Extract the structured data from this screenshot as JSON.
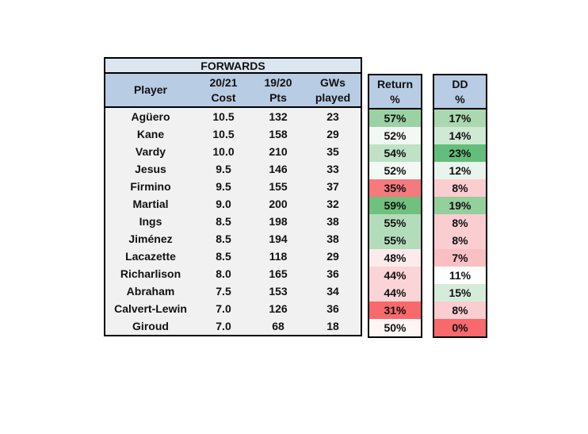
{
  "colors": {
    "title_bg": "#dce6f1",
    "header_bg": "#b8cce4",
    "table_bg": "#f1f1f1",
    "border": "#000000",
    "scale_green_max": "#63be7b",
    "scale_red_min": "#f8696b"
  },
  "table": {
    "title": "FORWARDS",
    "headers": {
      "player": "Player",
      "cost_line1": "20/21",
      "cost_line2": "Cost",
      "pts_line1": "19/20",
      "pts_line2": "Pts",
      "gws_line1": "GWs",
      "gws_line2": "played"
    },
    "rows": [
      {
        "name": "Agüero",
        "cost": "10.5",
        "pts": "132",
        "gws": "23",
        "return_pct": "57%",
        "return_color": "#9bd2a4",
        "dd_pct": "17%",
        "dd_color": "#a9d8b1"
      },
      {
        "name": "Kane",
        "cost": "10.5",
        "pts": "158",
        "gws": "29",
        "return_pct": "52%",
        "return_color": "#f2f8f3",
        "dd_pct": "14%",
        "dd_color": "#cfe9d5"
      },
      {
        "name": "Vardy",
        "cost": "10.0",
        "pts": "210",
        "gws": "35",
        "return_pct": "54%",
        "return_color": "#bfe1c6",
        "dd_pct": "23%",
        "dd_color": "#63be7b"
      },
      {
        "name": "Jesus",
        "cost": "9.5",
        "pts": "146",
        "gws": "33",
        "return_pct": "52%",
        "return_color": "#f2f8f3",
        "dd_pct": "12%",
        "dd_color": "#e9f4ec"
      },
      {
        "name": "Firmino",
        "cost": "9.5",
        "pts": "155",
        "gws": "37",
        "return_pct": "35%",
        "return_color": "#f5797d",
        "dd_pct": "8%",
        "dd_color": "#facdd1"
      },
      {
        "name": "Martial",
        "cost": "9.0",
        "pts": "200",
        "gws": "32",
        "return_pct": "59%",
        "return_color": "#70c07e",
        "dd_pct": "19%",
        "dd_color": "#94cf9e"
      },
      {
        "name": "Ings",
        "cost": "8.5",
        "pts": "198",
        "gws": "38",
        "return_pct": "55%",
        "return_color": "#b3dcbb",
        "dd_pct": "8%",
        "dd_color": "#facdd1"
      },
      {
        "name": "Jiménez",
        "cost": "8.5",
        "pts": "194",
        "gws": "38",
        "return_pct": "55%",
        "return_color": "#b3dcbb",
        "dd_pct": "8%",
        "dd_color": "#facdd1"
      },
      {
        "name": "Lacazette",
        "cost": "8.5",
        "pts": "118",
        "gws": "29",
        "return_pct": "48%",
        "return_color": "#fcebec",
        "dd_pct": "7%",
        "dd_color": "#f9c0c4"
      },
      {
        "name": "Richarlison",
        "cost": "8.0",
        "pts": "165",
        "gws": "36",
        "return_pct": "44%",
        "return_color": "#fad4d6",
        "dd_pct": "11%",
        "dd_color": "#fdfefd"
      },
      {
        "name": "Abraham",
        "cost": "7.5",
        "pts": "153",
        "gws": "34",
        "return_pct": "44%",
        "return_color": "#fad4d6",
        "dd_pct": "15%",
        "dd_color": "#d5ecda"
      },
      {
        "name": "Calvert-Lewin",
        "cost": "7.0",
        "pts": "126",
        "gws": "36",
        "return_pct": "31%",
        "return_color": "#f8696b",
        "dd_pct": "8%",
        "dd_color": "#facdd1"
      },
      {
        "name": "Giroud",
        "cost": "7.0",
        "pts": "68",
        "gws": "18",
        "return_pct": "50%",
        "return_color": "#fef5f5",
        "dd_pct": "0%",
        "dd_color": "#f8696b"
      }
    ]
  },
  "return_column": {
    "header_line1": "Return",
    "header_line2": "%"
  },
  "dd_column": {
    "header_line1": "DD",
    "header_line2": "%"
  }
}
